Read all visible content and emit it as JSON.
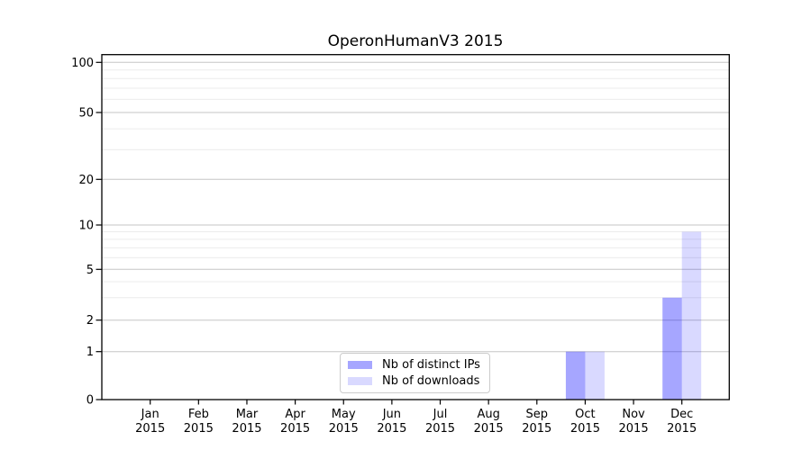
{
  "chart_data": {
    "type": "bar",
    "title": "OperonHumanV3 2015",
    "categories": [
      "Jan",
      "Feb",
      "Mar",
      "Apr",
      "May",
      "Jun",
      "Jul",
      "Aug",
      "Sep",
      "Oct",
      "Nov",
      "Dec"
    ],
    "category_year": "2015",
    "series": [
      {
        "name": "Nb of distinct IPs",
        "color": "#0000FF",
        "opacity": 0.35,
        "values": [
          0,
          0,
          0,
          0,
          0,
          0,
          0,
          0,
          0,
          1,
          0,
          3
        ]
      },
      {
        "name": "Nb of downloads",
        "color": "#0000FF",
        "opacity": 0.15,
        "values": [
          0,
          0,
          0,
          0,
          0,
          0,
          0,
          0,
          0,
          1,
          0,
          9
        ]
      }
    ],
    "yticks": [
      0,
      1,
      2,
      5,
      10,
      20,
      50,
      100
    ],
    "minor_yticks": [
      3,
      4,
      6,
      7,
      8,
      9,
      30,
      40,
      60,
      70,
      80,
      90
    ],
    "scale": "symlog",
    "ylim": [
      0,
      110
    ],
    "grid": "on",
    "legend_position": "lower-center",
    "colors": {
      "major_grid": "#c6c6c6",
      "minor_grid": "#ececec",
      "axis": "#000000",
      "text": "#000000"
    }
  }
}
